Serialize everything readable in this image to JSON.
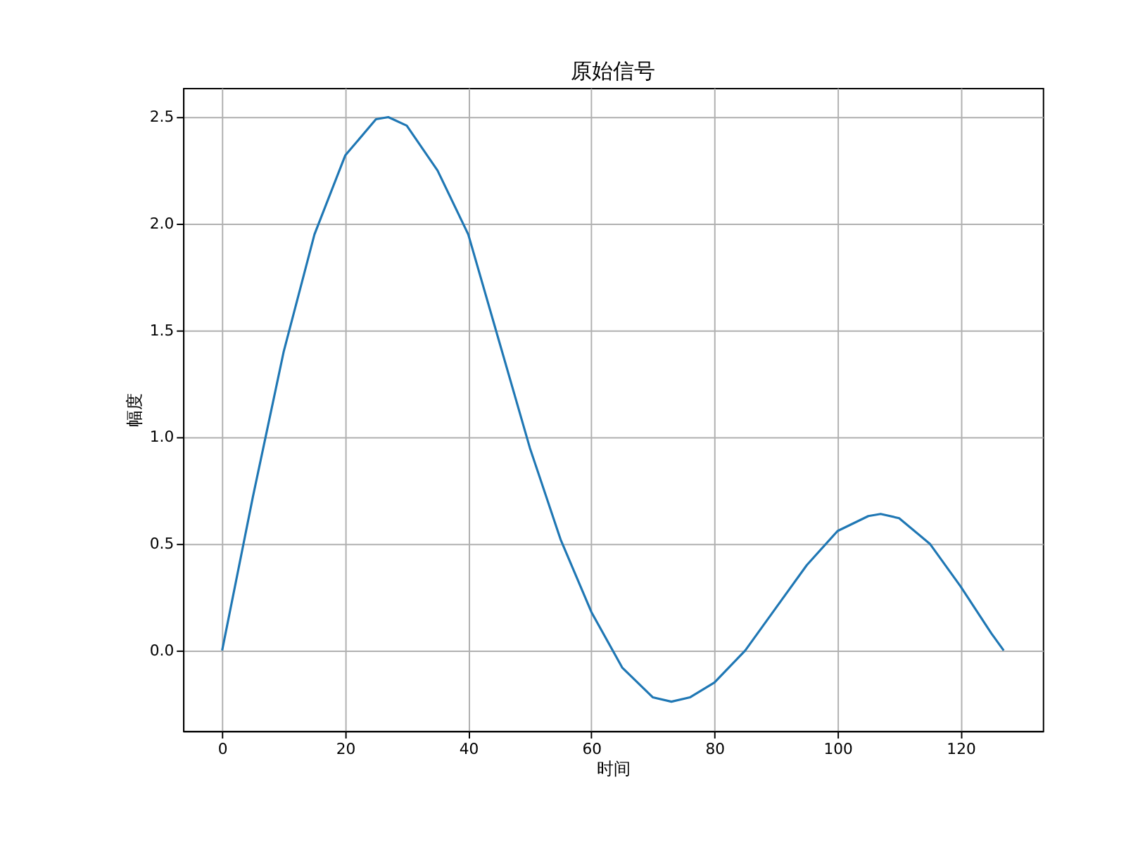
{
  "chart_data": {
    "type": "line",
    "title": "原始信号",
    "xlabel": "时间",
    "ylabel": "幅度",
    "x": [
      0,
      5,
      10,
      15,
      20,
      25,
      27,
      30,
      35,
      40,
      45,
      50,
      55,
      60,
      65,
      70,
      73,
      76,
      80,
      85,
      90,
      95,
      100,
      105,
      107,
      110,
      115,
      120,
      125,
      127
    ],
    "series": [
      {
        "color": "#1f77b4",
        "values": [
          0,
          0.72,
          1.4,
          1.95,
          2.32,
          2.49,
          2.5,
          2.46,
          2.25,
          1.95,
          1.45,
          0.95,
          0.52,
          0.18,
          -0.08,
          -0.22,
          -0.24,
          -0.22,
          -0.15,
          0.0,
          0.2,
          0.4,
          0.56,
          0.63,
          0.64,
          0.62,
          0.5,
          0.3,
          0.08,
          0
        ]
      }
    ],
    "xlim": [
      -6.35,
      133.35
    ],
    "ylim": [
      -0.377,
      2.637
    ],
    "xticks": [
      0,
      20,
      40,
      60,
      80,
      100,
      120
    ],
    "yticks": [
      {
        "value": 0,
        "label": "0.0"
      },
      {
        "value": 0.5,
        "label": "0.5"
      },
      {
        "value": 1,
        "label": "1.0"
      },
      {
        "value": 1.5,
        "label": "1.5"
      },
      {
        "value": 2,
        "label": "2.0"
      },
      {
        "value": 2.5,
        "label": "2.5"
      }
    ],
    "grid": true,
    "marker": "none",
    "line_style": "solid"
  }
}
